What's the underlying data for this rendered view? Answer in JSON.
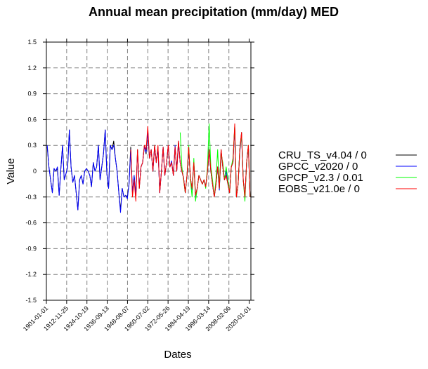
{
  "chart_data": {
    "type": "line",
    "title": "Annual mean precipitation (mm/day) MED",
    "xlabel": "Dates",
    "ylabel": "Value",
    "ylim": [
      -1.5,
      1.5
    ],
    "xlim": [
      "1901-01-01",
      "2020-12-31"
    ],
    "yticks": [
      -1.5,
      -1.2,
      -0.9,
      -0.6,
      -0.3,
      0,
      0.3,
      0.6,
      0.9,
      1.2,
      1.5
    ],
    "ytick_labels": [
      "-1.5",
      "-1.2",
      "-0.9",
      "-0.6",
      "-0.3",
      "0",
      "0.3",
      "0.6",
      "0.9",
      "1.2",
      "1.5"
    ],
    "xticks": [
      "1901-01-01",
      "1912-11-25",
      "1924-10-19",
      "1936-09-13",
      "1948-08-07",
      "1960-07-02",
      "1972-05-26",
      "1984-04-19",
      "1996-03-14",
      "2008-02-06",
      "2020-01-01"
    ],
    "grid": true,
    "legend_position": "right",
    "series": [
      {
        "name": "CRU_TS_v4.04 / 0",
        "color": "#000000",
        "x_start_year": 1901,
        "values": [
          0.28,
          0.05,
          -0.1,
          -0.25,
          0.03,
          0.0,
          0.03,
          -0.28,
          0.03,
          0.3,
          -0.1,
          -0.03,
          0.05,
          0.48,
          0.05,
          -0.13,
          -0.05,
          -0.25,
          -0.45,
          -0.1,
          -0.05,
          -0.15,
          0.0,
          0.03,
          0.0,
          -0.05,
          -0.18,
          0.1,
          0.0,
          0.05,
          0.3,
          -0.1,
          0.05,
          0.2,
          0.48,
          -0.03,
          -0.2,
          0.3,
          0.25,
          0.35,
          0.15,
          0.0,
          -0.25,
          -0.45,
          -0.2,
          -0.3,
          -0.28,
          -0.3,
          -0.15,
          0.28,
          -0.25,
          -0.05,
          -0.3,
          0.25,
          -0.2,
          0.05,
          0.1,
          0.3,
          0.2,
          0.48,
          0.15,
          0.25,
          0.0,
          0.3,
          0.1,
          0.28,
          -0.25,
          0.0,
          0.28,
          -0.05,
          0.1,
          0.3,
          0.05,
          0.1,
          -0.05,
          0.28,
          0.0,
          0.35,
          0.1,
          0.0,
          -0.08,
          -0.25,
          -0.05,
          0.28,
          -0.08,
          -0.2,
          0.1,
          -0.28,
          -0.2,
          -0.05,
          -0.1,
          -0.15,
          -0.1,
          -0.18,
          0.0,
          0.25,
          0.0,
          -0.15,
          -0.3,
          -0.15,
          0.05,
          -0.2,
          0.25,
          0.05,
          -0.1,
          -0.05,
          -0.15,
          -0.25,
          0.05,
          0.1,
          0.52,
          -0.3,
          -0.15,
          0.25,
          0.45,
          -0.1,
          -0.3,
          0.1,
          0.3,
          -0.3
        ]
      },
      {
        "name": "GPCC_v2020 / 0",
        "color": "#0000ff",
        "x_start_year": 1901,
        "values": [
          0.3,
          0.05,
          -0.1,
          -0.25,
          0.03,
          0.0,
          0.05,
          -0.28,
          0.03,
          0.3,
          -0.1,
          -0.03,
          0.05,
          0.48,
          0.05,
          -0.13,
          -0.05,
          -0.25,
          -0.45,
          -0.1,
          -0.05,
          -0.15,
          0.0,
          0.03,
          0.0,
          -0.05,
          -0.18,
          0.1,
          0.0,
          0.05,
          0.3,
          -0.1,
          0.05,
          0.2,
          0.48,
          -0.03,
          -0.2,
          0.3,
          0.25,
          0.3,
          0.15,
          0.0,
          -0.25,
          -0.48,
          -0.2,
          -0.3,
          -0.28,
          -0.32,
          -0.15,
          0.25,
          -0.25,
          -0.05,
          -0.28,
          0.22,
          -0.18,
          0.05,
          0.1,
          0.28,
          0.22,
          0.45,
          0.15,
          0.25,
          0.0,
          0.28,
          0.1,
          0.28,
          -0.25,
          0.0,
          0.28,
          -0.05,
          0.1,
          0.3,
          0.05,
          0.12,
          -0.05,
          0.3,
          0.0,
          0.32,
          0.1,
          0.0,
          -0.08,
          -0.25,
          -0.05,
          0.25,
          -0.08,
          -0.22,
          0.1,
          -0.3,
          -0.2,
          -0.05,
          -0.1,
          -0.15,
          -0.1,
          -0.18,
          0.0,
          0.25,
          0.0,
          -0.15,
          -0.3,
          -0.15,
          0.05,
          -0.22,
          0.22,
          0.05,
          -0.1,
          0.0,
          -0.15,
          -0.25,
          0.05,
          0.1,
          0.5,
          -0.3,
          -0.15,
          0.22,
          0.42,
          -0.1,
          -0.3,
          0.1,
          0.28,
          -0.3
        ]
      },
      {
        "name": "GPCP_v2.3 / 0.01",
        "color": "#00ff00",
        "x_start_year": 1979,
        "values": [
          0.45,
          0.05,
          -0.1,
          -0.25,
          -0.05,
          0.3,
          -0.1,
          -0.3,
          0.15,
          -0.35,
          -0.2,
          -0.05,
          -0.1,
          -0.15,
          -0.1,
          -0.2,
          0.05,
          0.55,
          0.05,
          -0.1,
          -0.3,
          -0.1,
          0.25,
          -0.2,
          0.2,
          0.1,
          -0.1,
          0.05,
          -0.1,
          -0.25,
          0.05,
          0.15,
          0.52,
          -0.3,
          -0.15,
          0.25,
          0.42,
          -0.1,
          -0.35,
          0.1,
          0.3,
          -0.3
        ]
      },
      {
        "name": "EOBS_v21.0e / 0",
        "color": "#ff0000",
        "x_start_year": 1950,
        "values": [
          0.25,
          -0.3,
          -0.1,
          -0.35,
          0.25,
          -0.2,
          0.05,
          0.1,
          0.3,
          0.25,
          0.52,
          0.15,
          0.25,
          0.0,
          0.3,
          0.1,
          0.3,
          -0.25,
          0.0,
          0.28,
          -0.05,
          0.1,
          0.3,
          0.05,
          0.1,
          -0.05,
          0.28,
          0.0,
          0.35,
          0.1,
          0.0,
          -0.08,
          -0.25,
          -0.05,
          0.28,
          -0.08,
          -0.2,
          0.1,
          -0.28,
          -0.2,
          -0.05,
          -0.1,
          -0.15,
          -0.1,
          -0.18,
          0.0,
          0.25,
          0.0,
          -0.15,
          -0.3,
          -0.15,
          0.05,
          -0.2,
          0.25,
          0.05,
          -0.1,
          -0.05,
          -0.15,
          -0.25,
          0.05,
          0.1,
          0.55,
          -0.3,
          -0.15,
          0.25,
          0.45,
          -0.1,
          -0.3,
          0.1,
          0.3,
          -0.3
        ]
      }
    ]
  }
}
